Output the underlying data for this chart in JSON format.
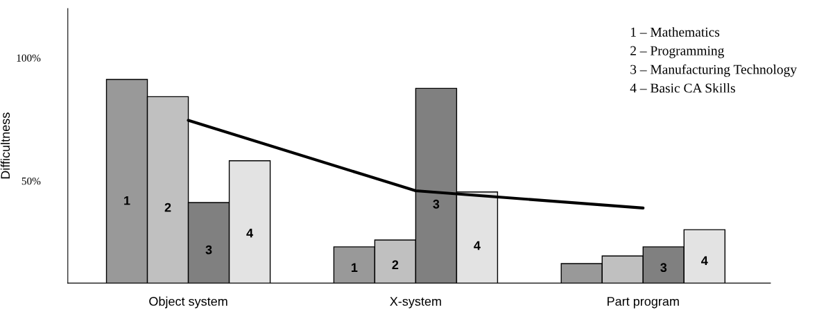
{
  "chart_data": {
    "type": "bar",
    "ylabel": "Difficultness",
    "categories": [
      "Object system",
      "X-system",
      "Part program"
    ],
    "ylim": [
      8.5,
      120
    ],
    "yticks": [
      {
        "value": 100,
        "label": "100%"
      },
      {
        "value": 50,
        "label": "50%"
      }
    ],
    "grid": false,
    "series": [
      {
        "name": "1",
        "color": "#999999",
        "values": [
          91.2,
          23.2,
          16.4
        ]
      },
      {
        "name": "2",
        "color": "#c0c0c0",
        "values": [
          84.2,
          26,
          19.5
        ]
      },
      {
        "name": "3",
        "color": "#808080",
        "values": [
          41.2,
          87.6,
          23.2
        ]
      },
      {
        "name": "4",
        "color": "#e3e3e3",
        "values": [
          58.2,
          45.5,
          30.2
        ]
      },
      {
        "type": "line",
        "color": "#000000",
        "values": [
          74.6,
          46,
          39
        ]
      }
    ],
    "annotations": [
      "1 – Mathematics",
      "2 – Programming",
      "3 – Manufacturing Technology",
      "4 – Basic CA Skills"
    ]
  }
}
